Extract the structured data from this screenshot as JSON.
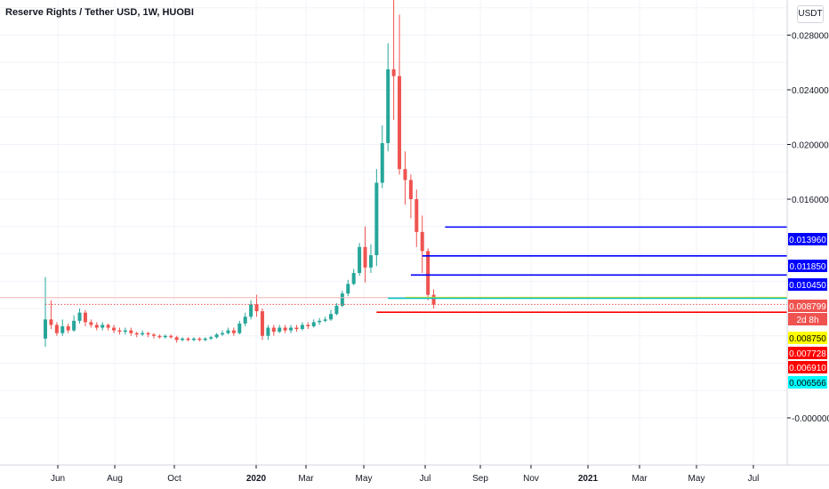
{
  "header": {
    "title": "Reserve Rights / Tether USD, 1W, HUOBI",
    "unit_badge": "USDT"
  },
  "price_labels": [
    {
      "text": "0.013960",
      "value": 0.01396,
      "bg": "#0000ff",
      "fg": "#ffffff"
    },
    {
      "text": "0.011850",
      "value": 0.01185,
      "bg": "#0000ff",
      "fg": "#ffffff"
    },
    {
      "text": "0.010450",
      "value": 0.01045,
      "bg": "#0000ff",
      "fg": "#ffffff"
    },
    {
      "text": "0.008799",
      "value": 0.008799,
      "bg": "#ef5350",
      "fg": "#ffffff"
    },
    {
      "text": "2d 8h",
      "value": 0.0083,
      "bg": "#ef5350",
      "fg": "#ffffff"
    },
    {
      "text": "0.008750",
      "value": 0.00875,
      "bg": "#ffff00",
      "fg": "#000000"
    },
    {
      "text": "0.007728",
      "value": 0.007728,
      "bg": "#ff0000",
      "fg": "#ffffff"
    },
    {
      "text": "0.006910",
      "value": 0.00691,
      "bg": "#ff0000",
      "fg": "#ffffff"
    },
    {
      "text": "0.006566",
      "value": 0.006566,
      "bg": "#00ffff",
      "fg": "#000000"
    }
  ],
  "chart_data": {
    "type": "candlestick",
    "colors": {
      "up": "#26a69a",
      "down": "#ef5350",
      "grid": "#f0f3fa",
      "axis_text": "#131722"
    },
    "y_axis": {
      "ticks": [
        -0.0,
        0.016,
        0.02,
        0.024,
        0.028
      ],
      "tick_labels": [
        "-0.000000",
        "0.016000",
        "0.020000",
        "0.024000",
        "0.028000"
      ]
    },
    "x_axis": {
      "tick_labels": [
        "Jun",
        "Aug",
        "Oct",
        "2020",
        "Mar",
        "May",
        "Jul",
        "Sep",
        "Nov",
        "2021",
        "Mar",
        "May",
        "Jul"
      ],
      "bold": [
        "2020",
        "2021"
      ]
    },
    "horizontal_lines": [
      {
        "name": "level-0.013960",
        "value": 0.01396,
        "color": "#0000ff",
        "from_bar": 70
      },
      {
        "name": "level-0.011850",
        "value": 0.01185,
        "color": "#0000ff",
        "from_bar": 66
      },
      {
        "name": "level-0.010450",
        "value": 0.01045,
        "color": "#0000ff",
        "from_bar": 64
      },
      {
        "name": "level-0.008799",
        "value": 0.008799,
        "color": "#ffd600",
        "from_bar": 63
      },
      {
        "name": "level-0.008750",
        "value": 0.00875,
        "color": "#00c8c8",
        "from_bar": 60
      },
      {
        "name": "level-0.007728",
        "value": 0.007728,
        "color": "#ff0000",
        "from_bar": 58
      },
      {
        "name": "current-price",
        "value": 0.0083,
        "color": "#ef5350",
        "from_bar": 0,
        "dotted": true
      }
    ],
    "candles": [
      [
        0.0058,
        0.0072,
        0.0052,
        0.0103
      ],
      [
        0.0072,
        0.0068,
        0.0065,
        0.0086
      ],
      [
        0.0068,
        0.0062,
        0.006,
        0.007
      ],
      [
        0.0062,
        0.0067,
        0.006,
        0.0072
      ],
      [
        0.0067,
        0.0064,
        0.0062,
        0.0069
      ],
      [
        0.0064,
        0.0071,
        0.0063,
        0.0075
      ],
      [
        0.0071,
        0.0077,
        0.0069,
        0.008
      ],
      [
        0.0077,
        0.007,
        0.0067,
        0.0079
      ],
      [
        0.007,
        0.0068,
        0.0066,
        0.0072
      ],
      [
        0.0068,
        0.0066,
        0.0064,
        0.007
      ],
      [
        0.0066,
        0.0068,
        0.0064,
        0.007
      ],
      [
        0.0068,
        0.0066,
        0.0064,
        0.0069
      ],
      [
        0.0066,
        0.0064,
        0.0062,
        0.0068
      ],
      [
        0.0064,
        0.0063,
        0.0061,
        0.0066
      ],
      [
        0.0063,
        0.0064,
        0.0061,
        0.0066
      ],
      [
        0.0064,
        0.0062,
        0.006,
        0.0066
      ],
      [
        0.0062,
        0.0061,
        0.0059,
        0.0063
      ],
      [
        0.0061,
        0.0062,
        0.006,
        0.0064
      ],
      [
        0.0062,
        0.0061,
        0.0059,
        0.0063
      ],
      [
        0.0061,
        0.006,
        0.0058,
        0.0062
      ],
      [
        0.006,
        0.0059,
        0.0058,
        0.0061
      ],
      [
        0.0059,
        0.006,
        0.0058,
        0.0061
      ],
      [
        0.006,
        0.0059,
        0.0058,
        0.0061
      ],
      [
        0.0059,
        0.0057,
        0.0055,
        0.006
      ],
      [
        0.0057,
        0.0058,
        0.0056,
        0.0059
      ],
      [
        0.0058,
        0.0057,
        0.0056,
        0.0059
      ],
      [
        0.0057,
        0.0058,
        0.0056,
        0.0059
      ],
      [
        0.0058,
        0.0057,
        0.0056,
        0.0059
      ],
      [
        0.0057,
        0.0058,
        0.0056,
        0.0059
      ],
      [
        0.0058,
        0.0059,
        0.0057,
        0.006
      ],
      [
        0.0059,
        0.0061,
        0.0058,
        0.0062
      ],
      [
        0.0061,
        0.0062,
        0.006,
        0.0064
      ],
      [
        0.0062,
        0.0064,
        0.0061,
        0.0066
      ],
      [
        0.0064,
        0.0062,
        0.006,
        0.0066
      ],
      [
        0.0062,
        0.0069,
        0.0061,
        0.0071
      ],
      [
        0.0069,
        0.0074,
        0.0067,
        0.0077
      ],
      [
        0.0074,
        0.0083,
        0.0072,
        0.0086
      ],
      [
        0.0083,
        0.0078,
        0.0074,
        0.009
      ],
      [
        0.0078,
        0.006,
        0.0057,
        0.008
      ],
      [
        0.006,
        0.0066,
        0.0057,
        0.0068
      ],
      [
        0.0066,
        0.0063,
        0.006,
        0.0068
      ],
      [
        0.0063,
        0.0066,
        0.0062,
        0.0068
      ],
      [
        0.0066,
        0.0064,
        0.0062,
        0.0068
      ],
      [
        0.0064,
        0.0066,
        0.0062,
        0.0068
      ],
      [
        0.0066,
        0.0065,
        0.0063,
        0.0068
      ],
      [
        0.0065,
        0.0068,
        0.0064,
        0.007
      ],
      [
        0.0068,
        0.0067,
        0.0065,
        0.007
      ],
      [
        0.0067,
        0.007,
        0.0066,
        0.0072
      ],
      [
        0.007,
        0.0071,
        0.0068,
        0.0073
      ],
      [
        0.0071,
        0.0072,
        0.007,
        0.0074
      ],
      [
        0.0072,
        0.0076,
        0.0071,
        0.0079
      ],
      [
        0.0076,
        0.0082,
        0.0075,
        0.0084
      ],
      [
        0.0082,
        0.0091,
        0.0081,
        0.0093
      ],
      [
        0.0091,
        0.0098,
        0.0089,
        0.0101
      ],
      [
        0.0098,
        0.0106,
        0.0097,
        0.0109
      ],
      [
        0.0106,
        0.0125,
        0.0104,
        0.0128
      ],
      [
        0.0125,
        0.011,
        0.0099,
        0.014
      ],
      [
        0.011,
        0.0119,
        0.0106,
        0.0127
      ],
      [
        0.0119,
        0.0172,
        0.0111,
        0.0182
      ],
      [
        0.0172,
        0.0201,
        0.0168,
        0.0214
      ],
      [
        0.0201,
        0.0255,
        0.0195,
        0.0274
      ],
      [
        0.0255,
        0.025,
        0.0218,
        0.0312
      ],
      [
        0.025,
        0.0182,
        0.0178,
        0.0295
      ],
      [
        0.0182,
        0.0174,
        0.0156,
        0.0195
      ],
      [
        0.0174,
        0.016,
        0.0146,
        0.0178
      ],
      [
        0.016,
        0.0136,
        0.0125,
        0.0167
      ],
      [
        0.0136,
        0.0122,
        0.0106,
        0.0148
      ],
      [
        0.0122,
        0.009,
        0.0086,
        0.0124
      ],
      [
        0.009,
        0.0083,
        0.008,
        0.0094
      ]
    ]
  }
}
